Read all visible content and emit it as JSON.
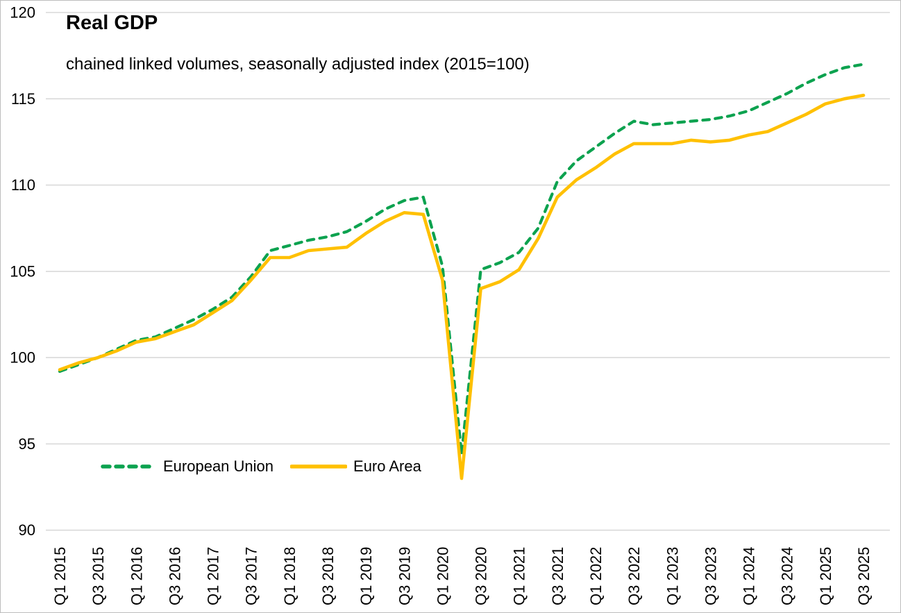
{
  "page": {
    "background_color": "#ffffff",
    "border_color": "#bdbdbd"
  },
  "chart_data": {
    "type": "line",
    "title": "Real GDP",
    "subtitle": "chained linked volumes, seasonally adjusted index (2015=100)",
    "xlabel": "",
    "ylabel": "",
    "ylim": [
      90,
      120
    ],
    "y_ticks": [
      90,
      95,
      100,
      105,
      110,
      115,
      120
    ],
    "x_tick_step": 2,
    "grid": "horizontal-only",
    "gridline_color": "#d9d9d9",
    "axis_text_color": "#000000",
    "legend_position": "inside-bottom-left",
    "categories": [
      "Q1 2015",
      "Q2 2015",
      "Q3 2015",
      "Q4 2015",
      "Q1 2016",
      "Q2 2016",
      "Q3 2016",
      "Q4 2016",
      "Q1 2017",
      "Q2 2017",
      "Q3 2017",
      "Q4 2017",
      "Q1 2018",
      "Q2 2018",
      "Q3 2018",
      "Q4 2018",
      "Q1 2019",
      "Q2 2019",
      "Q3 2019",
      "Q4 2019",
      "Q1 2020",
      "Q2 2020",
      "Q3 2020",
      "Q4 2020",
      "Q1 2021",
      "Q2 2021",
      "Q3 2021",
      "Q4 2021",
      "Q1 2022",
      "Q2 2022",
      "Q3 2022",
      "Q4 2022",
      "Q1 2023",
      "Q2 2023",
      "Q3 2023",
      "Q4 2023",
      "Q1 2024",
      "Q2 2024",
      "Q3 2024",
      "Q4 2024",
      "Q1 2025",
      "Q2 2025",
      "Q3 2025"
    ],
    "series": [
      {
        "name": "European Union",
        "style": "dashed",
        "color": "#0ca24f",
        "values": [
          99.2,
          99.6,
          100.0,
          100.5,
          101.0,
          101.2,
          101.7,
          102.2,
          102.8,
          103.5,
          104.7,
          106.2,
          106.5,
          106.8,
          107.0,
          107.3,
          107.9,
          108.6,
          109.1,
          109.3,
          105.3,
          94.4,
          105.1,
          105.5,
          106.1,
          107.5,
          110.2,
          111.4,
          112.2,
          113.0,
          113.7,
          113.5,
          113.6,
          113.7,
          113.8,
          114.0,
          114.3,
          114.8,
          115.3,
          115.9,
          116.4,
          116.8,
          117.0
        ]
      },
      {
        "name": "Euro Area",
        "style": "solid",
        "color": "#ffc000",
        "values": [
          99.3,
          99.7,
          100.0,
          100.4,
          100.9,
          101.1,
          101.5,
          101.9,
          102.6,
          103.3,
          104.5,
          105.8,
          105.8,
          106.2,
          106.3,
          106.4,
          107.2,
          107.9,
          108.4,
          108.3,
          104.5,
          93.0,
          104.0,
          104.4,
          105.1,
          106.9,
          109.3,
          110.3,
          111.0,
          111.8,
          112.4,
          112.4,
          112.4,
          112.6,
          112.5,
          112.6,
          112.9,
          113.1,
          113.6,
          114.1,
          114.7,
          115.0,
          115.2
        ]
      }
    ]
  }
}
